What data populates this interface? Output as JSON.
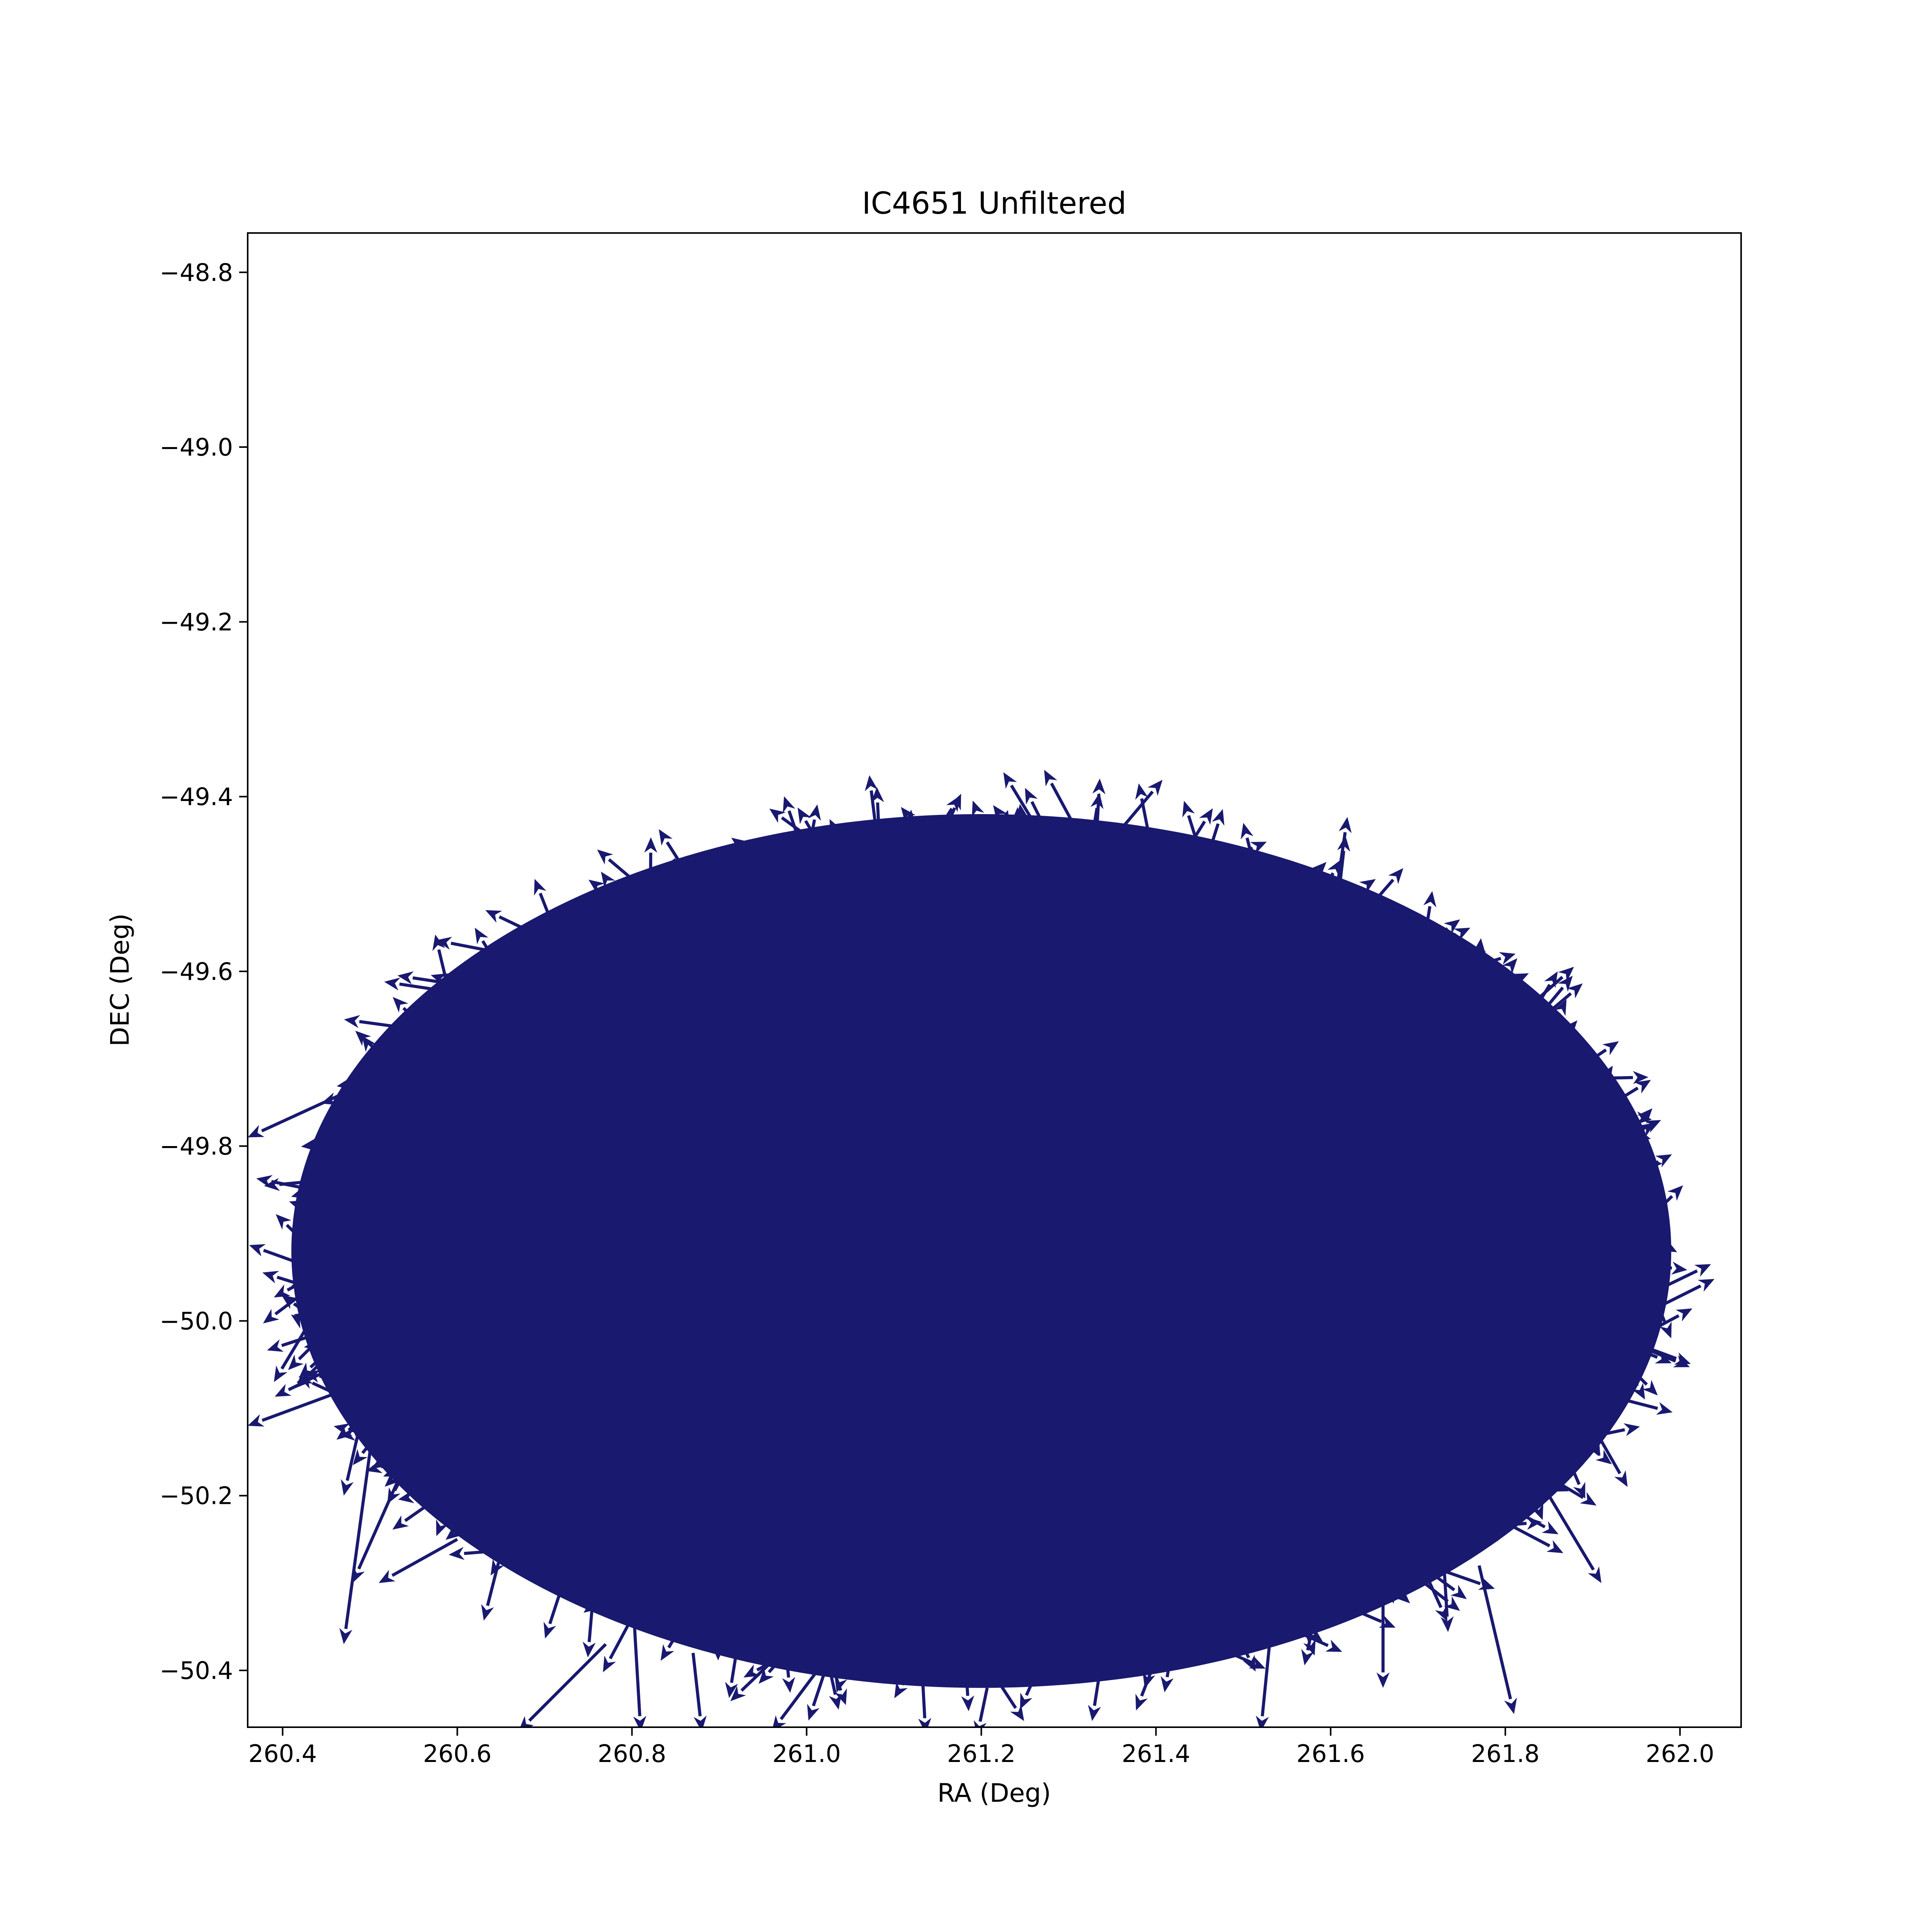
{
  "chart_data": {
    "type": "quiver",
    "title": "IC4651 Unfiltered",
    "xlabel": "RA (Deg)",
    "ylabel": "DEC (Deg)",
    "xlim": [
      260.36,
      262.07
    ],
    "ylim": [
      -50.465,
      -48.755
    ],
    "xticks": [
      260.4,
      260.6,
      260.8,
      261.0,
      261.2,
      261.4,
      261.6,
      261.8,
      262.0
    ],
    "xtick_labels": [
      "260.4",
      "260.6",
      "260.8",
      "261.0",
      "261.2",
      "261.4",
      "261.6",
      "261.8",
      "262.0"
    ],
    "yticks": [
      -48.8,
      -49.0,
      -49.2,
      -49.4,
      -49.6,
      -49.8,
      -50.0,
      -50.2,
      -50.4
    ],
    "ytick_labels": [
      "−48.8",
      "−49.0",
      "−49.2",
      "−49.4",
      "−49.6",
      "−49.8",
      "−50.0",
      "−50.2",
      "−50.4"
    ],
    "grid": false,
    "series": [
      {
        "color": "#191970",
        "field_region": {
          "center_ra": 261.2,
          "center_dec": -49.92,
          "semi_axis_ra": 0.79,
          "semi_axis_dec": 0.5
        },
        "outlier_vectors": [
          {
            "x": 260.6,
            "y": -49.68,
            "dx": -0.24,
            "dy": -0.11
          },
          {
            "x": 260.55,
            "y": -50.05,
            "dx": -0.19,
            "dy": -0.07
          },
          {
            "x": 260.5,
            "y": -49.77,
            "dx": -0.07,
            "dy": -0.05
          },
          {
            "x": 260.5,
            "y": -49.93,
            "dx": -0.09,
            "dy": -0.03
          },
          {
            "x": 260.45,
            "y": -49.97,
            "dx": -0.06,
            "dy": -0.1
          },
          {
            "x": 260.5,
            "y": -50.07,
            "dx": -0.03,
            "dy": -0.13
          },
          {
            "x": 260.56,
            "y": -50.12,
            "dx": -0.08,
            "dy": -0.18
          },
          {
            "x": 260.5,
            "y": -50.15,
            "dx": -0.03,
            "dy": -0.22
          },
          {
            "x": 260.77,
            "y": -50.37,
            "dx": -0.1,
            "dy": -0.1
          },
          {
            "x": 260.8,
            "y": -50.3,
            "dx": 0.01,
            "dy": -0.17
          },
          {
            "x": 260.87,
            "y": -50.38,
            "dx": 0.01,
            "dy": -0.09
          },
          {
            "x": 261.05,
            "y": -50.35,
            "dx": -0.09,
            "dy": -0.12
          },
          {
            "x": 261.53,
            "y": -50.37,
            "dx": -0.01,
            "dy": -0.1
          },
          {
            "x": 261.77,
            "y": -50.28,
            "dx": 0.04,
            "dy": -0.17
          },
          {
            "x": 261.66,
            "y": -50.32,
            "dx": 0.0,
            "dy": -0.1
          },
          {
            "x": 261.85,
            "y": -50.2,
            "dx": 0.06,
            "dy": -0.1
          },
          {
            "x": 261.9,
            "y": -50.12,
            "dx": 0.04,
            "dy": -0.07
          },
          {
            "x": 261.92,
            "y": -50.02,
            "dx": 0.04,
            "dy": -0.07
          },
          {
            "x": 261.97,
            "y": -49.97,
            "dx": 0.02,
            "dy": -0.05
          },
          {
            "x": 261.94,
            "y": -49.82,
            "dx": 0.04,
            "dy": 0.0
          },
          {
            "x": 261.9,
            "y": -49.7,
            "dx": 0.03,
            "dy": 0.02
          },
          {
            "x": 261.83,
            "y": -49.65,
            "dx": 0.03,
            "dy": 0.05
          },
          {
            "x": 261.66,
            "y": -49.6,
            "dx": 0.1,
            "dy": 0.05
          },
          {
            "x": 261.51,
            "y": -49.47,
            "dx": -0.01,
            "dy": 0.04
          },
          {
            "x": 261.27,
            "y": -49.43,
            "dx": -0.02,
            "dy": 0.04
          },
          {
            "x": 260.82,
            "y": -49.52,
            "dx": 0.03,
            "dy": 0.05
          },
          {
            "x": 260.65,
            "y": -49.6,
            "dx": -0.03,
            "dy": 0.05
          },
          {
            "x": 260.6,
            "y": -50.25,
            "dx": -0.09,
            "dy": -0.05
          }
        ]
      }
    ]
  }
}
